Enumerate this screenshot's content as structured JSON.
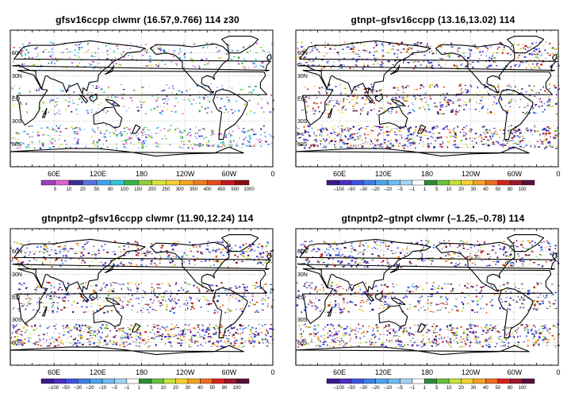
{
  "panels": [
    {
      "title": "gfsv16ccpp  clwmr  (16.57,9.766)  114  z30",
      "colorbar": {
        "labels": [
          "5",
          "10",
          "20",
          "50",
          "80",
          "100",
          "150",
          "200",
          "250",
          "300",
          "350",
          "400",
          "450",
          "500",
          "1000"
        ],
        "colors": [
          "#9a3fb5",
          "#e05fd0",
          "#3c2d96",
          "#5a6ee6",
          "#3fa0f0",
          "#30c8d8",
          "#35b44a",
          "#8ccf3c",
          "#d6e635",
          "#f5d12f",
          "#f5a623",
          "#f07a1e",
          "#e84a1c",
          "#c4181a",
          "#8a0f0f"
        ]
      },
      "scheme": "seq"
    },
    {
      "title": "gtnpt–gfsv16ccpp  (13.16,13.02)  114",
      "colorbar": {
        "labels": [
          "–100",
          "–50",
          "–30",
          "–20",
          "–10",
          "–5",
          "–1",
          "1",
          "5",
          "10",
          "20",
          "30",
          "40",
          "50",
          "80",
          "100"
        ],
        "colors": [
          "#3a1a8c",
          "#4b2fc2",
          "#3c53e0",
          "#3f7ee8",
          "#4ba4ef",
          "#6fbcf2",
          "#a2d5f5",
          "#ffffff",
          "#2e8c37",
          "#6ac13d",
          "#c2e23a",
          "#f5d12f",
          "#f2a227",
          "#ee6d20",
          "#d6221b",
          "#9a1a2e",
          "#5a0e3c"
        ]
      },
      "scheme": "diff"
    },
    {
      "title": "gtnpntp2–gfsv16ccpp  clwmr  (11.90,12.24)  114",
      "colorbar": {
        "labels": [
          "–100",
          "–50",
          "–30",
          "–20",
          "–10",
          "–5",
          "–1",
          "1",
          "5",
          "10",
          "20",
          "30",
          "40",
          "50",
          "80",
          "100"
        ],
        "colors": [
          "#3a1a8c",
          "#4b2fc2",
          "#3c53e0",
          "#3f7ee8",
          "#4ba4ef",
          "#6fbcf2",
          "#a2d5f5",
          "#ffffff",
          "#2e8c37",
          "#6ac13d",
          "#c2e23a",
          "#f5d12f",
          "#f2a227",
          "#ee6d20",
          "#d6221b",
          "#9a1a2e",
          "#5a0e3c"
        ]
      },
      "scheme": "diff"
    },
    {
      "title": "gtnpntp2–gtnpt  clwmr  (–1.25,–0.78)  114",
      "colorbar": {
        "labels": [
          "–100",
          "–50",
          "–30",
          "–20",
          "–10",
          "–5",
          "–1",
          "1",
          "5",
          "10",
          "20",
          "30",
          "40",
          "50",
          "80",
          "100"
        ],
        "colors": [
          "#3a1a8c",
          "#4b2fc2",
          "#3c53e0",
          "#3f7ee8",
          "#4ba4ef",
          "#6fbcf2",
          "#a2d5f5",
          "#ffffff",
          "#2e8c37",
          "#6ac13d",
          "#c2e23a",
          "#f5d12f",
          "#f2a227",
          "#ee6d20",
          "#d6221b",
          "#9a1a2e",
          "#5a0e3c"
        ]
      },
      "scheme": "diff"
    }
  ],
  "lat_labels": [
    "60N",
    "30N",
    "EQ",
    "30S",
    "60S"
  ],
  "lon_labels": [
    "60E",
    "120E",
    "180",
    "120W",
    "60W",
    "0"
  ],
  "map_colors": {
    "frame": "#000000",
    "coast": "#000000",
    "grid": "#9a9a9a"
  }
}
